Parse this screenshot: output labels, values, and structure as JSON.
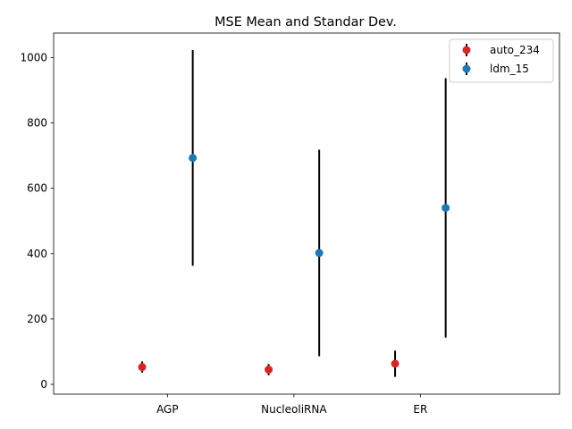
{
  "chart_data": {
    "type": "scatter",
    "title": "MSE Mean and Standar Dev.",
    "xlabel": "",
    "ylabel": "",
    "categories": [
      "AGP",
      "NucleoliRNA",
      "ER"
    ],
    "ylim": [
      -30,
      1075
    ],
    "y_ticks": [
      0,
      200,
      400,
      600,
      800,
      1000
    ],
    "grid": false,
    "legend_position": "top-right",
    "series": [
      {
        "name": "auto_234",
        "color": "#d62728",
        "offset": -0.2,
        "values": [
          53,
          45,
          63
        ],
        "errors": [
          17,
          17,
          40
        ]
      },
      {
        "name": "ldm_15",
        "color": "#1f77b4",
        "offset": 0.2,
        "values": [
          693,
          402,
          540
        ],
        "errors": [
          330,
          316,
          397
        ]
      }
    ]
  }
}
